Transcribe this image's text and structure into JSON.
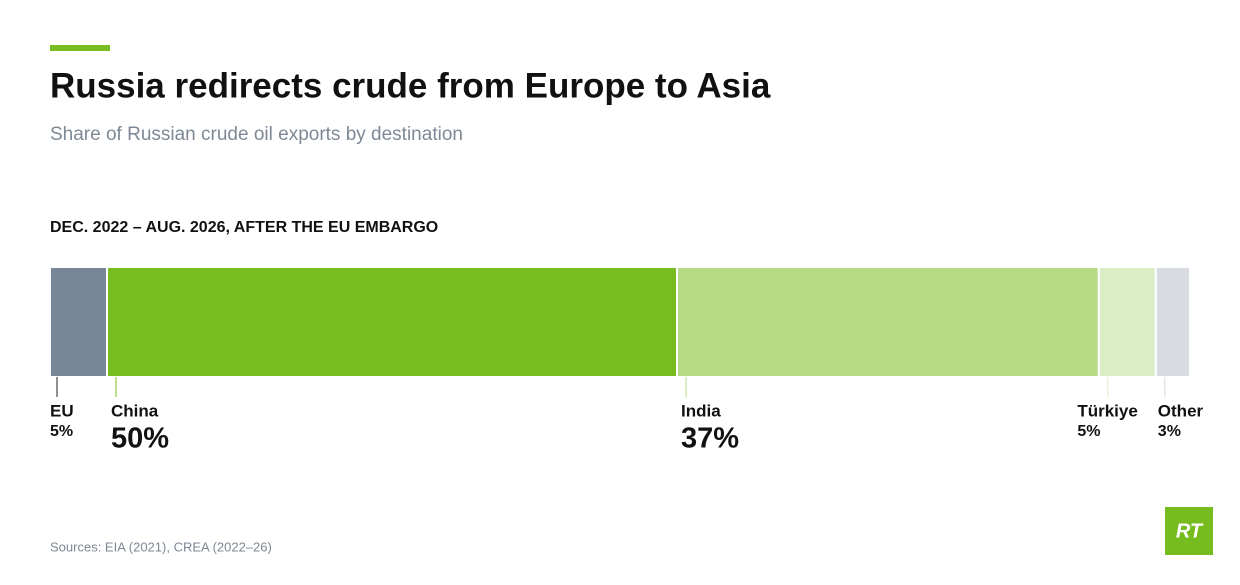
{
  "chart_data": {
    "type": "stacked_bar",
    "title": "Russia redirects crude from Europe to Asia",
    "subtitle": "Share of Russian crude oil exports by destination",
    "period_label": "DEC. 2022 – AUG. 2026, AFTER THE EU EMBARGO",
    "source": "Sources: EIA (2021), CREA (2022–26)",
    "logo": "RT",
    "xlim": [
      0,
      100
    ],
    "series": [
      {
        "name": "EU",
        "color": "#778797",
        "values": [
          5
        ],
        "value_labels": [
          "5%"
        ]
      },
      {
        "name": "China",
        "color": "#78bd20",
        "values": [
          50
        ],
        "value_labels": [
          "50%"
        ]
      },
      {
        "name": "India",
        "color": "#b5dc84",
        "values": [
          37
        ],
        "value_labels": [
          "37%"
        ]
      },
      {
        "name": "Türkiye",
        "color": "#dbedc5",
        "values": [
          5
        ],
        "value_labels": [
          "5%"
        ]
      },
      {
        "name": "Other",
        "color": "#d8dbdf",
        "values": [
          3
        ],
        "value_labels": [
          "3%"
        ]
      }
    ]
  }
}
